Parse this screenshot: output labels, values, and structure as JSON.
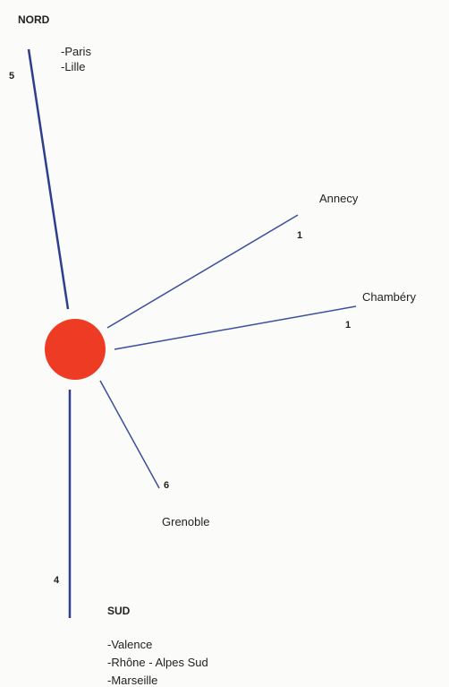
{
  "nodes": [
    {
      "label": "NORD",
      "count": "5",
      "items": [
        "-Paris",
        "-Lille"
      ]
    },
    {
      "label": "Annecy",
      "count": "1"
    },
    {
      "label": "Chambéry",
      "count": "1"
    },
    {
      "label": "Grenoble",
      "count": "6"
    },
    {
      "label": "SUD",
      "count": "4",
      "items": [
        "-Valence",
        "-Rhône - Alpes Sud",
        "-Marseille"
      ]
    }
  ]
}
